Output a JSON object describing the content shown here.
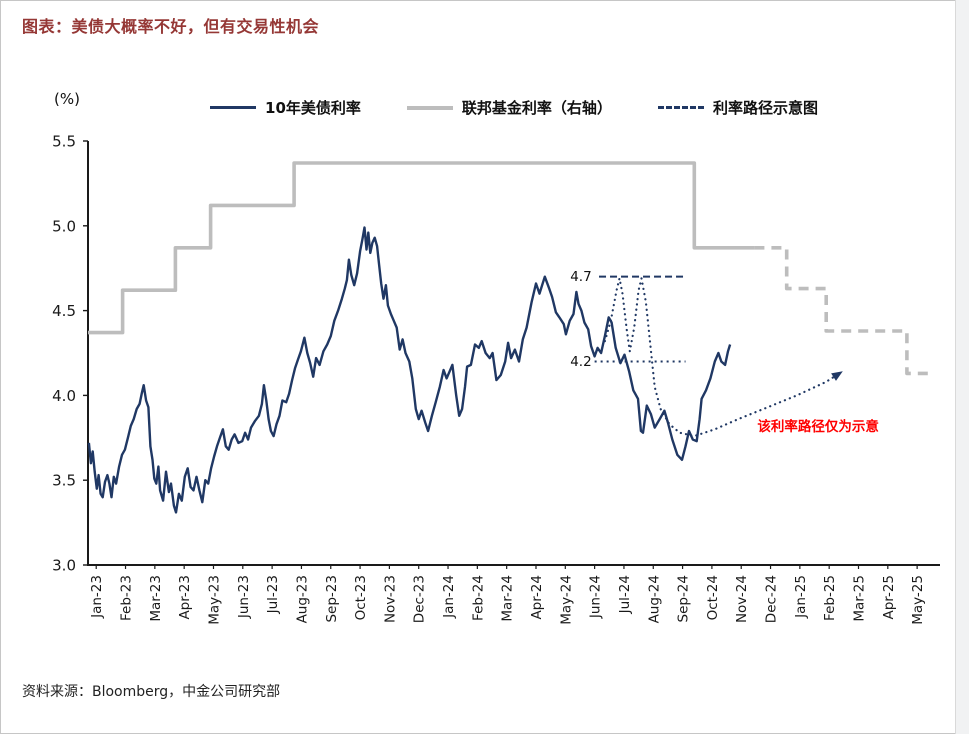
{
  "title": "图表：美债大概率不好，但有交易性机会",
  "source": "资料来源：Bloomberg，中金公司研究部",
  "colors": {
    "title_red": "#953735",
    "treasury": "#203864",
    "fed": "#bdbdbd",
    "annotation_red": "#ff0000",
    "axis": "#1a1a1a"
  },
  "chart_data": {
    "type": "line",
    "title": "美债大概率不好，但有交易性机会",
    "ylabel": "(%)",
    "ylim": [
      3.0,
      5.5
    ],
    "xlim": [
      -0.28,
      28.78
    ],
    "yticks": [
      "5.5",
      "5.0",
      "4.5",
      "4.0",
      "3.5",
      "3.0"
    ],
    "grid": false,
    "legend_position": "top-center",
    "categories": [
      "Jan-23",
      "Feb-23",
      "Mar-23",
      "Apr-23",
      "May-23",
      "Jun-23",
      "Jul-23",
      "Aug-23",
      "Sep-23",
      "Oct-23",
      "Nov-23",
      "Dec-23",
      "Jan-24",
      "Feb-24",
      "Mar-24",
      "Apr-24",
      "May-24",
      "Jun-24",
      "Jul-24",
      "Aug-24",
      "Sep-24",
      "Oct-24",
      "Nov-24",
      "Dec-24",
      "Jan-25",
      "Feb-25",
      "Mar-25",
      "Apr-25",
      "May-25"
    ],
    "legend": [
      {
        "label": "10年美债利率",
        "style": "solid",
        "color": "#203864"
      },
      {
        "label": "联邦基金利率（右轴）",
        "style": "solid-thick",
        "color": "#bdbdbd"
      },
      {
        "label": "利率路径示意图",
        "style": "dashed",
        "color": "#203864"
      }
    ],
    "series": [
      {
        "key": "fed-funds-actual-line",
        "name": "联邦基金利率（右轴）",
        "color": "#bdbdbd",
        "width": 3.6,
        "points": [
          [
            -0.28,
            4.37
          ],
          [
            0.9,
            4.37
          ],
          [
            0.9,
            4.62
          ],
          [
            2.7,
            4.62
          ],
          [
            2.7,
            4.87
          ],
          [
            3.9,
            4.87
          ],
          [
            3.9,
            5.12
          ],
          [
            6.75,
            5.12
          ],
          [
            6.75,
            5.37
          ],
          [
            20.4,
            5.37
          ],
          [
            20.4,
            4.87
          ],
          [
            22.45,
            4.87
          ]
        ]
      },
      {
        "key": "fed-funds-projected-line",
        "name": "联邦基金利率预期路径",
        "color": "#bdbdbd",
        "width": 3.6,
        "dash": "10 7",
        "points": [
          [
            22.45,
            4.87
          ],
          [
            23.55,
            4.87
          ],
          [
            23.55,
            4.63
          ],
          [
            24.9,
            4.63
          ],
          [
            24.9,
            4.38
          ],
          [
            27.65,
            4.38
          ],
          [
            27.65,
            4.13
          ],
          [
            28.6,
            4.13
          ]
        ]
      },
      {
        "key": "treasury-10y-line",
        "name": "10年美债利率",
        "color": "#203864",
        "width": 2.4,
        "points": [
          [
            -0.25,
            3.72
          ],
          [
            -0.18,
            3.6
          ],
          [
            -0.12,
            3.67
          ],
          [
            -0.05,
            3.55
          ],
          [
            0.02,
            3.45
          ],
          [
            0.08,
            3.53
          ],
          [
            0.15,
            3.42
          ],
          [
            0.22,
            3.4
          ],
          [
            0.3,
            3.49
          ],
          [
            0.38,
            3.53
          ],
          [
            0.45,
            3.48
          ],
          [
            0.52,
            3.4
          ],
          [
            0.6,
            3.52
          ],
          [
            0.68,
            3.48
          ],
          [
            0.78,
            3.58
          ],
          [
            0.88,
            3.65
          ],
          [
            0.98,
            3.68
          ],
          [
            1.08,
            3.75
          ],
          [
            1.18,
            3.82
          ],
          [
            1.28,
            3.86
          ],
          [
            1.38,
            3.92
          ],
          [
            1.48,
            3.95
          ],
          [
            1.55,
            4.01
          ],
          [
            1.62,
            4.06
          ],
          [
            1.7,
            3.97
          ],
          [
            1.78,
            3.93
          ],
          [
            1.85,
            3.7
          ],
          [
            1.92,
            3.62
          ],
          [
            1.98,
            3.51
          ],
          [
            2.05,
            3.48
          ],
          [
            2.12,
            3.58
          ],
          [
            2.18,
            3.44
          ],
          [
            2.28,
            3.38
          ],
          [
            2.38,
            3.55
          ],
          [
            2.48,
            3.43
          ],
          [
            2.55,
            3.48
          ],
          [
            2.65,
            3.35
          ],
          [
            2.72,
            3.31
          ],
          [
            2.82,
            3.42
          ],
          [
            2.92,
            3.38
          ],
          [
            3.02,
            3.52
          ],
          [
            3.12,
            3.57
          ],
          [
            3.22,
            3.46
          ],
          [
            3.32,
            3.44
          ],
          [
            3.42,
            3.52
          ],
          [
            3.52,
            3.44
          ],
          [
            3.62,
            3.37
          ],
          [
            3.72,
            3.5
          ],
          [
            3.82,
            3.48
          ],
          [
            3.92,
            3.57
          ],
          [
            4.02,
            3.64
          ],
          [
            4.12,
            3.7
          ],
          [
            4.22,
            3.75
          ],
          [
            4.32,
            3.8
          ],
          [
            4.42,
            3.7
          ],
          [
            4.52,
            3.68
          ],
          [
            4.62,
            3.74
          ],
          [
            4.72,
            3.77
          ],
          [
            4.85,
            3.72
          ],
          [
            4.98,
            3.73
          ],
          [
            5.08,
            3.78
          ],
          [
            5.18,
            3.74
          ],
          [
            5.28,
            3.81
          ],
          [
            5.42,
            3.85
          ],
          [
            5.55,
            3.88
          ],
          [
            5.65,
            3.95
          ],
          [
            5.72,
            4.06
          ],
          [
            5.8,
            3.97
          ],
          [
            5.88,
            3.86
          ],
          [
            5.96,
            3.79
          ],
          [
            6.05,
            3.76
          ],
          [
            6.15,
            3.83
          ],
          [
            6.25,
            3.88
          ],
          [
            6.35,
            3.97
          ],
          [
            6.48,
            3.96
          ],
          [
            6.58,
            4.01
          ],
          [
            6.68,
            4.09
          ],
          [
            6.78,
            4.16
          ],
          [
            6.88,
            4.21
          ],
          [
            6.98,
            4.26
          ],
          [
            7.1,
            4.34
          ],
          [
            7.2,
            4.25
          ],
          [
            7.3,
            4.19
          ],
          [
            7.4,
            4.11
          ],
          [
            7.5,
            4.22
          ],
          [
            7.62,
            4.18
          ],
          [
            7.75,
            4.26
          ],
          [
            7.88,
            4.3
          ],
          [
            8.0,
            4.35
          ],
          [
            8.12,
            4.44
          ],
          [
            8.25,
            4.5
          ],
          [
            8.38,
            4.57
          ],
          [
            8.48,
            4.63
          ],
          [
            8.55,
            4.68
          ],
          [
            8.62,
            4.8
          ],
          [
            8.7,
            4.71
          ],
          [
            8.8,
            4.65
          ],
          [
            8.9,
            4.72
          ],
          [
            9.0,
            4.85
          ],
          [
            9.08,
            4.92
          ],
          [
            9.15,
            4.99
          ],
          [
            9.22,
            4.86
          ],
          [
            9.28,
            4.96
          ],
          [
            9.35,
            4.84
          ],
          [
            9.42,
            4.9
          ],
          [
            9.5,
            4.93
          ],
          [
            9.58,
            4.88
          ],
          [
            9.65,
            4.77
          ],
          [
            9.72,
            4.66
          ],
          [
            9.8,
            4.57
          ],
          [
            9.88,
            4.65
          ],
          [
            9.95,
            4.53
          ],
          [
            10.05,
            4.48
          ],
          [
            10.15,
            4.44
          ],
          [
            10.25,
            4.4
          ],
          [
            10.35,
            4.27
          ],
          [
            10.45,
            4.33
          ],
          [
            10.55,
            4.25
          ],
          [
            10.68,
            4.2
          ],
          [
            10.78,
            4.1
          ],
          [
            10.9,
            3.92
          ],
          [
            11.0,
            3.86
          ],
          [
            11.1,
            3.91
          ],
          [
            11.22,
            3.84
          ],
          [
            11.32,
            3.79
          ],
          [
            11.45,
            3.88
          ],
          [
            11.58,
            3.96
          ],
          [
            11.72,
            4.05
          ],
          [
            11.85,
            4.15
          ],
          [
            11.95,
            4.1
          ],
          [
            12.05,
            4.14
          ],
          [
            12.15,
            4.18
          ],
          [
            12.28,
            4.0
          ],
          [
            12.38,
            3.88
          ],
          [
            12.48,
            3.92
          ],
          [
            12.58,
            4.05
          ],
          [
            12.65,
            4.17
          ],
          [
            12.78,
            4.18
          ],
          [
            12.92,
            4.3
          ],
          [
            13.05,
            4.28
          ],
          [
            13.15,
            4.32
          ],
          [
            13.28,
            4.25
          ],
          [
            13.42,
            4.22
          ],
          [
            13.52,
            4.25
          ],
          [
            13.65,
            4.09
          ],
          [
            13.8,
            4.12
          ],
          [
            13.95,
            4.2
          ],
          [
            14.05,
            4.31
          ],
          [
            14.15,
            4.22
          ],
          [
            14.28,
            4.27
          ],
          [
            14.42,
            4.2
          ],
          [
            14.55,
            4.33
          ],
          [
            14.68,
            4.4
          ],
          [
            14.85,
            4.55
          ],
          [
            15.0,
            4.66
          ],
          [
            15.12,
            4.6
          ],
          [
            15.3,
            4.7
          ],
          [
            15.45,
            4.63
          ],
          [
            15.55,
            4.58
          ],
          [
            15.68,
            4.49
          ],
          [
            15.8,
            4.46
          ],
          [
            15.95,
            4.42
          ],
          [
            16.02,
            4.36
          ],
          [
            16.15,
            4.44
          ],
          [
            16.28,
            4.48
          ],
          [
            16.38,
            4.61
          ],
          [
            16.45,
            4.54
          ],
          [
            16.55,
            4.5
          ],
          [
            16.65,
            4.43
          ],
          [
            16.78,
            4.39
          ],
          [
            16.88,
            4.29
          ],
          [
            17.0,
            4.23
          ],
          [
            17.1,
            4.28
          ],
          [
            17.22,
            4.25
          ],
          [
            17.35,
            4.35
          ],
          [
            17.48,
            4.46
          ],
          [
            17.58,
            4.43
          ],
          [
            17.72,
            4.28
          ],
          [
            17.88,
            4.19
          ],
          [
            18.02,
            4.24
          ],
          [
            18.18,
            4.14
          ],
          [
            18.32,
            4.03
          ],
          [
            18.48,
            3.98
          ],
          [
            18.58,
            3.79
          ],
          [
            18.65,
            3.78
          ],
          [
            18.78,
            3.94
          ],
          [
            18.92,
            3.89
          ],
          [
            19.05,
            3.81
          ],
          [
            19.22,
            3.86
          ],
          [
            19.38,
            3.91
          ],
          [
            19.5,
            3.84
          ],
          [
            19.65,
            3.74
          ],
          [
            19.82,
            3.65
          ],
          [
            19.98,
            3.62
          ],
          [
            20.1,
            3.7
          ],
          [
            20.22,
            3.79
          ],
          [
            20.35,
            3.74
          ],
          [
            20.48,
            3.73
          ],
          [
            20.58,
            3.86
          ],
          [
            20.65,
            3.98
          ],
          [
            20.8,
            4.03
          ],
          [
            20.95,
            4.1
          ],
          [
            21.1,
            4.2
          ],
          [
            21.22,
            4.25
          ],
          [
            21.32,
            4.2
          ],
          [
            21.45,
            4.18
          ],
          [
            21.55,
            4.26
          ],
          [
            21.62,
            4.3
          ]
        ]
      },
      {
        "key": "rate-path-dotted-line",
        "name": "利率路径示意图",
        "color": "#203864",
        "width": 2.2,
        "dash": "0.1 5.2",
        "linecap": "round",
        "arrow": true,
        "points": [
          [
            17.35,
            4.32
          ],
          [
            17.55,
            4.44
          ],
          [
            17.75,
            4.62
          ],
          [
            17.85,
            4.69
          ],
          [
            17.95,
            4.6
          ],
          [
            18.1,
            4.38
          ],
          [
            18.2,
            4.26
          ],
          [
            18.35,
            4.4
          ],
          [
            18.5,
            4.62
          ],
          [
            18.6,
            4.69
          ],
          [
            18.75,
            4.55
          ],
          [
            18.9,
            4.3
          ],
          [
            19.05,
            4.05
          ],
          [
            19.25,
            3.92
          ],
          [
            19.55,
            3.83
          ],
          [
            19.9,
            3.78
          ],
          [
            20.4,
            3.76
          ],
          [
            21.1,
            3.8
          ],
          [
            21.9,
            3.86
          ],
          [
            22.9,
            3.93
          ],
          [
            23.9,
            4.0
          ],
          [
            24.9,
            4.08
          ],
          [
            25.35,
            4.13
          ]
        ]
      }
    ],
    "annotations": {
      "hlines": [
        {
          "label": "4.7",
          "value": 4.7,
          "t1": 17.15,
          "t2": 20.1,
          "label_t": 16.9,
          "dash": "7 4"
        },
        {
          "label": "4.2",
          "value": 4.2,
          "t1": 17.0,
          "t2": 20.1,
          "label_t": 16.9,
          "dash": "2 4"
        }
      ],
      "note": {
        "text": "该利率路径仅为示意",
        "t": 22.55,
        "value": 3.79,
        "color": "#ff0000"
      }
    }
  }
}
